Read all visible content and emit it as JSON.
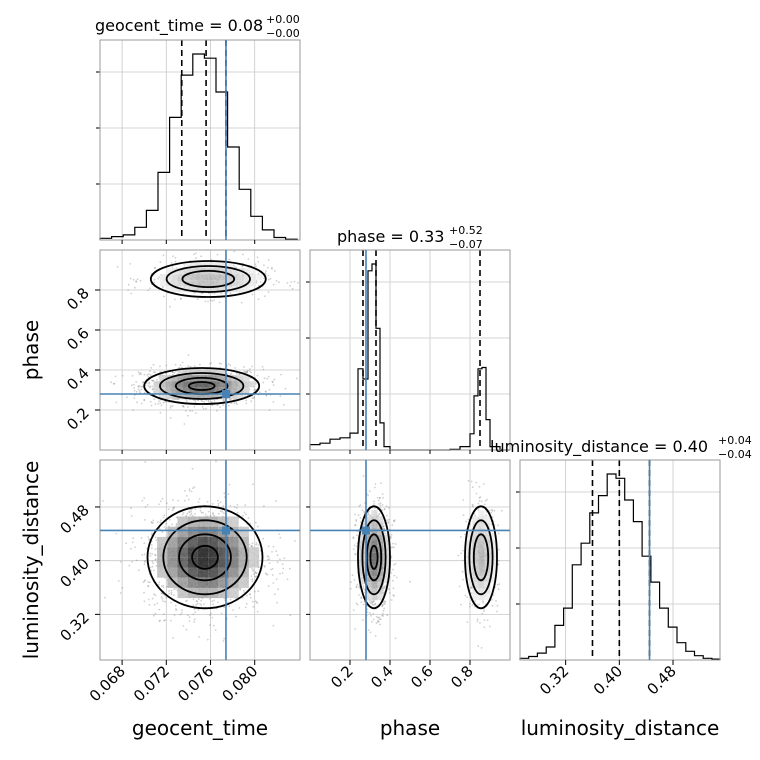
{
  "chart_data": {
    "type": "corner",
    "parameters": [
      "geocent_time",
      "phase",
      "luminosity_distance"
    ],
    "truths": {
      "geocent_time": 0.0774,
      "phase": 0.28,
      "luminosity_distance": 0.445
    },
    "truth_color": "#4682b4",
    "grid": true,
    "titles": [
      {
        "param": "geocent_time",
        "text": "geocent_time = 0.08",
        "plus": "+0.00",
        "minus": "−0.00"
      },
      {
        "param": "phase",
        "text": "phase = 0.33",
        "plus": "+0.52",
        "minus": "−0.07"
      },
      {
        "param": "luminosity_distance",
        "text": "luminosity_distance = 0.40",
        "plus": "+0.04",
        "minus": "−0.04"
      }
    ],
    "axes": {
      "geocent_time": {
        "range": [
          0.066,
          0.0841
        ],
        "ticks": [
          0.068,
          0.072,
          0.076,
          0.08
        ],
        "tick_labels": [
          "0.068",
          "0.072",
          "0.076",
          "0.080"
        ]
      },
      "phase": {
        "range": [
          0.0,
          1.0
        ],
        "ticks": [
          0.2,
          0.4,
          0.6,
          0.8
        ],
        "tick_labels": [
          "0.2",
          "0.4",
          "0.6",
          "0.8"
        ]
      },
      "luminosity_distance": {
        "range": [
          0.252,
          0.55
        ],
        "ticks": [
          0.32,
          0.4,
          0.48
        ],
        "tick_labels": [
          "0.32",
          "0.40",
          "0.48"
        ]
      }
    },
    "histograms": [
      {
        "param": "geocent_time",
        "bin_edges": [
          0.066,
          0.06705,
          0.0681,
          0.06915,
          0.0702,
          0.07125,
          0.0723,
          0.07335,
          0.0744,
          0.07545,
          0.0765,
          0.07755,
          0.0786,
          0.07965,
          0.0807,
          0.08175,
          0.0828,
          0.08385
        ],
        "counts": [
          2,
          4,
          6,
          15,
          35,
          80,
          145,
          195,
          220,
          215,
          175,
          110,
          60,
          28,
          12,
          3,
          1
        ],
        "quantiles": [
          0.0734,
          0.0756,
          0.0774
        ]
      },
      {
        "param": "phase",
        "bin_edges": [
          0.0,
          0.05,
          0.1,
          0.15,
          0.2,
          0.24,
          0.265,
          0.29,
          0.31,
          0.33,
          0.35,
          0.37,
          0.4,
          0.5,
          0.6,
          0.7,
          0.75,
          0.8,
          0.82,
          0.84,
          0.86,
          0.88,
          0.9,
          0.95,
          1.0
        ],
        "counts": [
          8,
          10,
          16,
          18,
          25,
          120,
          105,
          265,
          275,
          180,
          40,
          5,
          0,
          0,
          0,
          1,
          5,
          24,
          80,
          120,
          122,
          45,
          5,
          0
        ],
        "quantiles": [
          0.265,
          0.33,
          0.85
        ]
      },
      {
        "param": "luminosity_distance",
        "bin_edges": [
          0.252,
          0.265,
          0.278,
          0.291,
          0.304,
          0.317,
          0.33,
          0.343,
          0.356,
          0.369,
          0.382,
          0.395,
          0.408,
          0.421,
          0.434,
          0.447,
          0.46,
          0.473,
          0.486,
          0.499,
          0.512,
          0.525,
          0.538,
          0.55
        ],
        "counts": [
          2,
          4,
          8,
          15,
          40,
          60,
          110,
          135,
          170,
          190,
          215,
          210,
          185,
          160,
          120,
          90,
          60,
          38,
          20,
          10,
          5,
          2,
          1
        ],
        "quantiles": [
          0.36,
          0.4,
          0.445
        ]
      }
    ],
    "density_2d": [
      {
        "x": "geocent_time",
        "y": "phase",
        "modes": [
          {
            "x": 0.0752,
            "y": 0.32,
            "sx": 0.0026,
            "sy": 0.045,
            "n": 1100
          },
          {
            "x": 0.0758,
            "y": 0.855,
            "sx": 0.0026,
            "sy": 0.045,
            "n": 480
          }
        ]
      },
      {
        "x": "geocent_time",
        "y": "luminosity_distance",
        "modes": [
          {
            "x": 0.0755,
            "y": 0.405,
            "sx": 0.0026,
            "sy": 0.038,
            "n": 1500
          }
        ]
      },
      {
        "x": "phase",
        "y": "luminosity_distance",
        "modes": [
          {
            "x": 0.32,
            "y": 0.405,
            "sx": 0.04,
            "sy": 0.038,
            "n": 1000
          },
          {
            "x": 0.855,
            "y": 0.405,
            "sx": 0.04,
            "sy": 0.038,
            "n": 500
          }
        ]
      }
    ]
  }
}
